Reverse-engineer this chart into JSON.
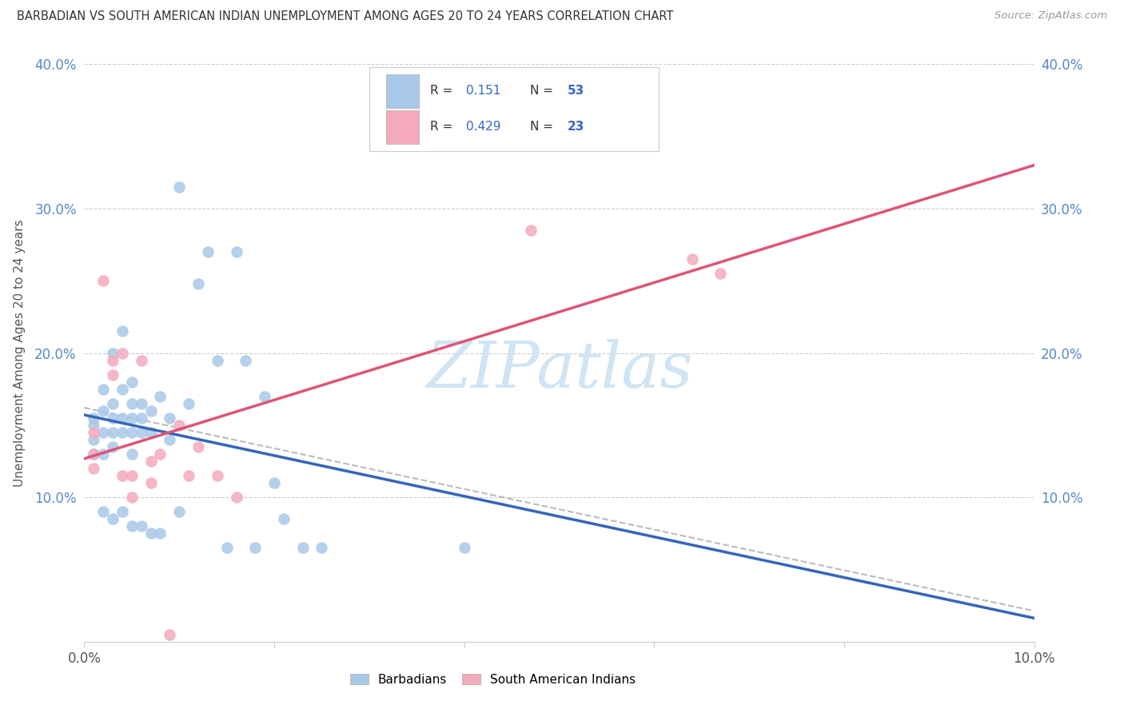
{
  "title": "BARBADIAN VS SOUTH AMERICAN INDIAN UNEMPLOYMENT AMONG AGES 20 TO 24 YEARS CORRELATION CHART",
  "source": "Source: ZipAtlas.com",
  "ylabel": "Unemployment Among Ages 20 to 24 years",
  "xlim": [
    0,
    0.1
  ],
  "ylim": [
    0,
    0.4
  ],
  "xtick_vals": [
    0.0,
    0.02,
    0.04,
    0.06,
    0.08,
    0.1
  ],
  "ytick_vals": [
    0.0,
    0.1,
    0.2,
    0.3,
    0.4
  ],
  "xtick_labels": [
    "0.0%",
    "",
    "",
    "",
    "",
    "10.0%"
  ],
  "ytick_labels": [
    "",
    "10.0%",
    "20.0%",
    "30.0%",
    "40.0%"
  ],
  "blue_R": "0.151",
  "blue_N": "53",
  "pink_R": "0.429",
  "pink_N": "23",
  "legend_label_blue": "Barbadians",
  "legend_label_pink": "South American Indians",
  "blue_fill": "#A8C8E8",
  "pink_fill": "#F4AABC",
  "blue_line": "#3366BB",
  "pink_line": "#DD5577",
  "blue_dash_color": "#99BBDD",
  "watermark_text": "ZIPatlas",
  "watermark_color": "#D0E4F4",
  "blue_x": [
    0.001,
    0.001,
    0.001,
    0.001,
    0.002,
    0.002,
    0.002,
    0.002,
    0.002,
    0.003,
    0.003,
    0.003,
    0.003,
    0.003,
    0.003,
    0.004,
    0.004,
    0.004,
    0.004,
    0.004,
    0.005,
    0.005,
    0.005,
    0.005,
    0.005,
    0.005,
    0.006,
    0.006,
    0.006,
    0.006,
    0.007,
    0.007,
    0.007,
    0.008,
    0.008,
    0.009,
    0.009,
    0.01,
    0.01,
    0.011,
    0.012,
    0.013,
    0.014,
    0.015,
    0.016,
    0.017,
    0.018,
    0.019,
    0.02,
    0.021,
    0.023,
    0.025,
    0.04
  ],
  "blue_y": [
    0.155,
    0.15,
    0.14,
    0.13,
    0.175,
    0.16,
    0.145,
    0.13,
    0.09,
    0.2,
    0.165,
    0.155,
    0.145,
    0.135,
    0.085,
    0.215,
    0.175,
    0.155,
    0.145,
    0.09,
    0.18,
    0.165,
    0.155,
    0.145,
    0.13,
    0.08,
    0.165,
    0.155,
    0.145,
    0.08,
    0.16,
    0.145,
    0.075,
    0.17,
    0.075,
    0.155,
    0.14,
    0.315,
    0.09,
    0.165,
    0.248,
    0.27,
    0.195,
    0.065,
    0.27,
    0.195,
    0.065,
    0.17,
    0.11,
    0.085,
    0.065,
    0.065,
    0.065
  ],
  "pink_x": [
    0.001,
    0.001,
    0.001,
    0.002,
    0.003,
    0.003,
    0.004,
    0.004,
    0.005,
    0.005,
    0.006,
    0.007,
    0.007,
    0.008,
    0.009,
    0.01,
    0.011,
    0.012,
    0.014,
    0.016,
    0.047,
    0.064,
    0.067
  ],
  "pink_y": [
    0.145,
    0.13,
    0.12,
    0.25,
    0.195,
    0.185,
    0.2,
    0.115,
    0.115,
    0.1,
    0.195,
    0.125,
    0.11,
    0.13,
    0.005,
    0.15,
    0.115,
    0.135,
    0.115,
    0.1,
    0.285,
    0.265,
    0.255
  ]
}
